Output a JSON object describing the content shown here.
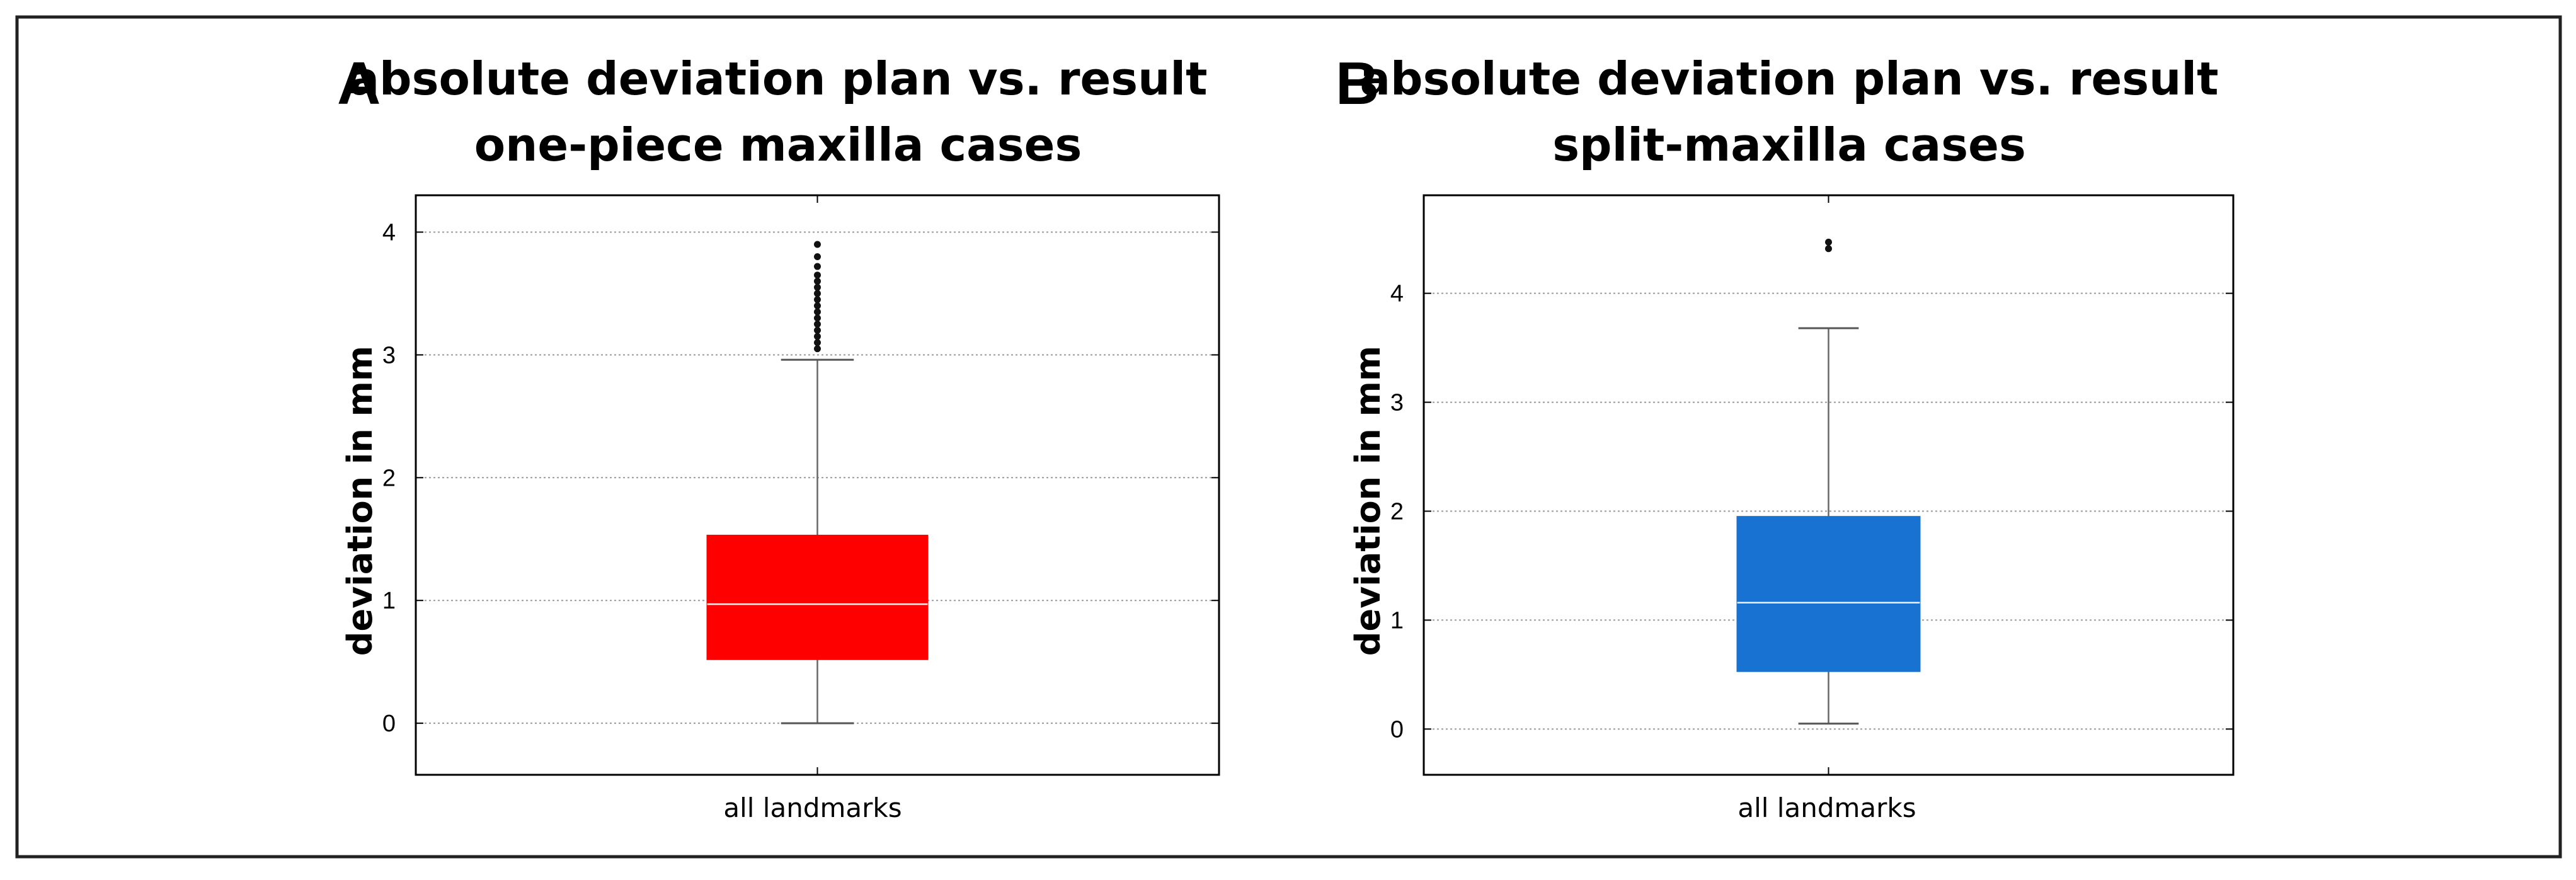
{
  "chart_data": [
    {
      "type": "box",
      "panel": "A",
      "title_lines": [
        "absolute deviation plan vs. result",
        "one-piece maxilla cases"
      ],
      "ylabel": "deviation in mm",
      "xlabel": "all landmarks",
      "ylim": [
        -0.42,
        4.3
      ],
      "yticks": [
        0,
        1,
        2,
        3,
        4
      ],
      "grid": true,
      "box": {
        "min": 0.0,
        "q1": 0.52,
        "median": 0.97,
        "q3": 1.53,
        "max": 2.96
      },
      "outliers": [
        3.05,
        3.1,
        3.15,
        3.2,
        3.25,
        3.3,
        3.35,
        3.4,
        3.45,
        3.5,
        3.55,
        3.6,
        3.65,
        3.72,
        3.8,
        3.9
      ],
      "color": "#ff0000"
    },
    {
      "type": "box",
      "panel": "B",
      "title_lines": [
        "absolute deviation plan vs. result",
        "split-maxilla cases"
      ],
      "ylabel": "deviation in mm",
      "xlabel": "all landmarks",
      "ylim": [
        -0.42,
        4.9
      ],
      "yticks": [
        0,
        1,
        2,
        3,
        4
      ],
      "grid": true,
      "box": {
        "min": 0.05,
        "q1": 0.53,
        "median": 1.16,
        "q3": 1.95,
        "max": 3.68
      },
      "outliers": [
        4.41,
        4.47
      ],
      "color": "#1872d2"
    }
  ]
}
